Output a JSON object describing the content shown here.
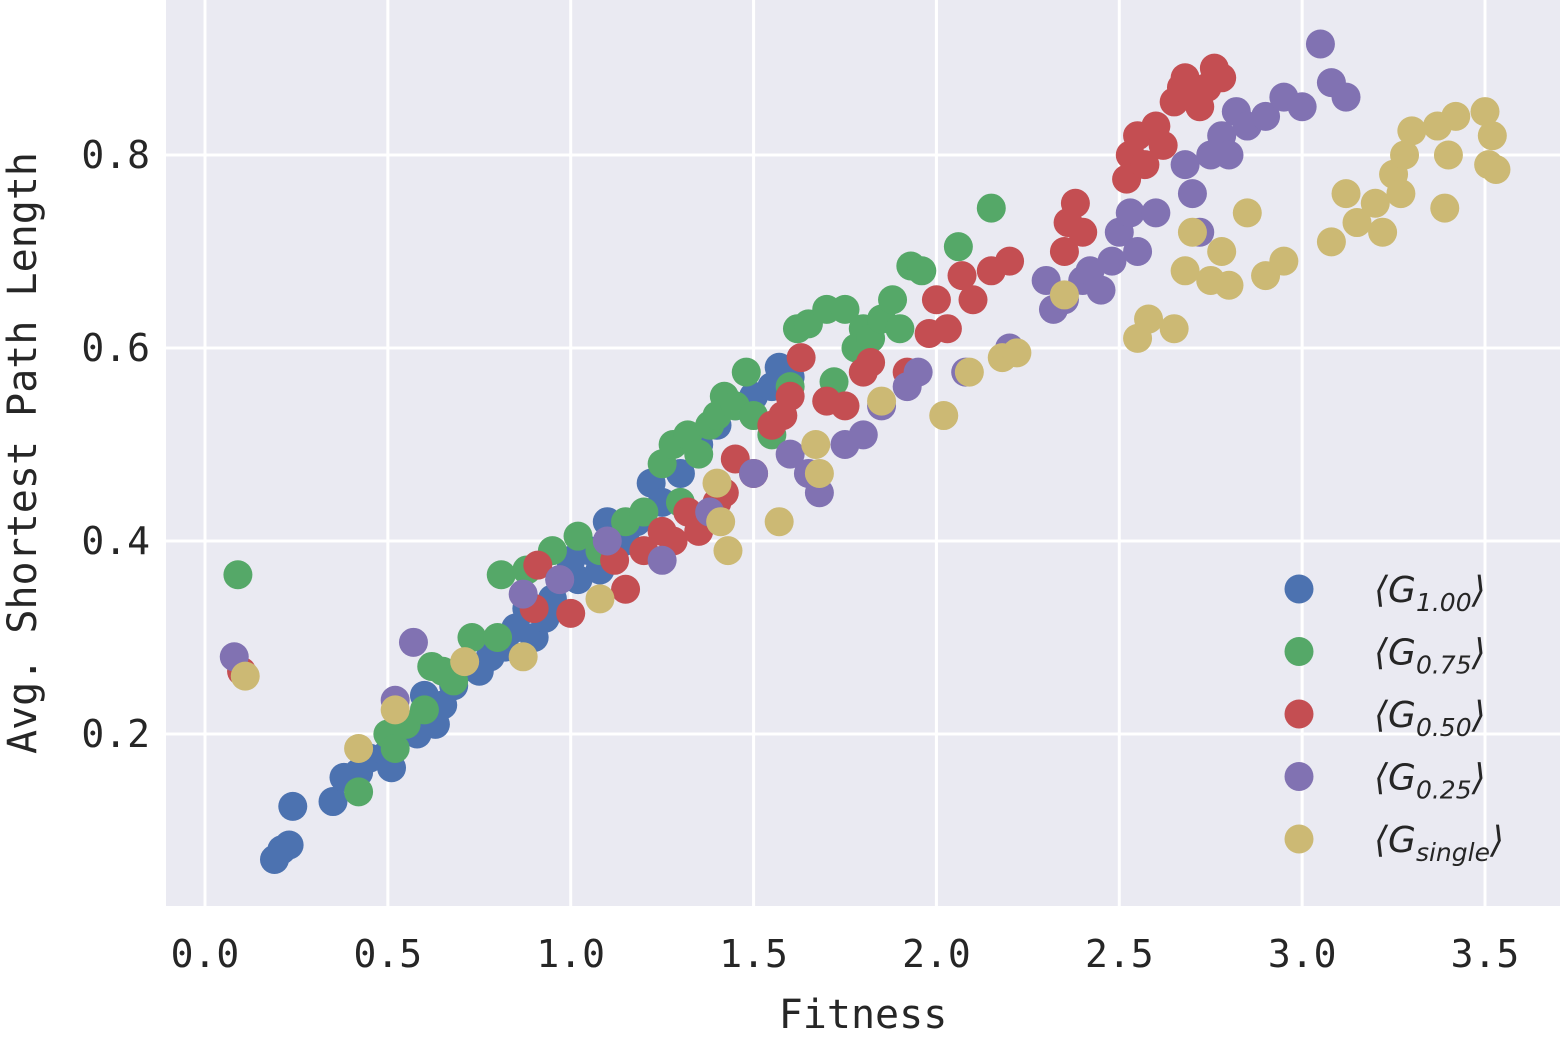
{
  "chart_data": {
    "type": "scatter",
    "xlabel": "Fitness",
    "ylabel": "Avg. Shortest Path Length",
    "xlim": [
      -0.1,
      3.6
    ],
    "ylim": [
      0.02,
      0.96
    ],
    "xticks": [
      "0.0",
      "0.5",
      "1.0",
      "1.5",
      "2.0",
      "2.5",
      "3.0",
      "3.5"
    ],
    "yticks": [
      "0.2",
      "0.4",
      "0.6",
      "0.8"
    ],
    "grid": true,
    "legend_position": "lower-right",
    "background_color": "#EAEAF2",
    "series": [
      {
        "legend": {
          "prefix": "⟨G",
          "sub": "1.00",
          "suffix": "⟩"
        },
        "color": "#4C72B0",
        "points": [
          [
            0.19,
            0.07
          ],
          [
            0.21,
            0.08
          ],
          [
            0.23,
            0.085
          ],
          [
            0.24,
            0.125
          ],
          [
            0.35,
            0.13
          ],
          [
            0.38,
            0.155
          ],
          [
            0.42,
            0.16
          ],
          [
            0.45,
            0.175
          ],
          [
            0.5,
            0.18
          ],
          [
            0.51,
            0.165
          ],
          [
            0.55,
            0.21
          ],
          [
            0.58,
            0.2
          ],
          [
            0.6,
            0.24
          ],
          [
            0.63,
            0.21
          ],
          [
            0.65,
            0.23
          ],
          [
            0.68,
            0.25
          ],
          [
            0.72,
            0.27
          ],
          [
            0.75,
            0.265
          ],
          [
            0.78,
            0.28
          ],
          [
            0.82,
            0.29
          ],
          [
            0.85,
            0.31
          ],
          [
            0.88,
            0.33
          ],
          [
            0.9,
            0.3
          ],
          [
            0.93,
            0.32
          ],
          [
            0.95,
            0.34
          ],
          [
            0.97,
            0.36
          ],
          [
            1.0,
            0.38
          ],
          [
            1.02,
            0.36
          ],
          [
            1.05,
            0.39
          ],
          [
            1.08,
            0.37
          ],
          [
            1.1,
            0.42
          ],
          [
            1.12,
            0.39
          ],
          [
            1.15,
            0.4
          ],
          [
            1.18,
            0.42
          ],
          [
            1.22,
            0.46
          ],
          [
            1.25,
            0.44
          ],
          [
            1.3,
            0.47
          ],
          [
            1.35,
            0.5
          ],
          [
            1.4,
            0.52
          ],
          [
            1.45,
            0.54
          ],
          [
            1.5,
            0.55
          ],
          [
            1.55,
            0.56
          ],
          [
            1.57,
            0.58
          ],
          [
            1.6,
            0.57
          ]
        ]
      },
      {
        "legend": {
          "prefix": "⟨G",
          "sub": "0.75",
          "suffix": "⟩"
        },
        "color": "#55A868",
        "points": [
          [
            0.09,
            0.365
          ],
          [
            0.42,
            0.14
          ],
          [
            0.5,
            0.2
          ],
          [
            0.52,
            0.185
          ],
          [
            0.55,
            0.21
          ],
          [
            0.6,
            0.225
          ],
          [
            0.62,
            0.27
          ],
          [
            0.65,
            0.265
          ],
          [
            0.68,
            0.255
          ],
          [
            0.73,
            0.3
          ],
          [
            0.8,
            0.3
          ],
          [
            0.81,
            0.365
          ],
          [
            0.88,
            0.37
          ],
          [
            0.95,
            0.39
          ],
          [
            1.02,
            0.405
          ],
          [
            1.08,
            0.39
          ],
          [
            1.15,
            0.42
          ],
          [
            1.2,
            0.43
          ],
          [
            1.25,
            0.48
          ],
          [
            1.28,
            0.5
          ],
          [
            1.3,
            0.44
          ],
          [
            1.32,
            0.51
          ],
          [
            1.35,
            0.49
          ],
          [
            1.38,
            0.52
          ],
          [
            1.4,
            0.53
          ],
          [
            1.42,
            0.55
          ],
          [
            1.45,
            0.54
          ],
          [
            1.48,
            0.575
          ],
          [
            1.5,
            0.53
          ],
          [
            1.55,
            0.51
          ],
          [
            1.6,
            0.56
          ],
          [
            1.62,
            0.62
          ],
          [
            1.65,
            0.625
          ],
          [
            1.7,
            0.64
          ],
          [
            1.72,
            0.565
          ],
          [
            1.75,
            0.64
          ],
          [
            1.78,
            0.6
          ],
          [
            1.8,
            0.62
          ],
          [
            1.82,
            0.61
          ],
          [
            1.85,
            0.63
          ],
          [
            1.88,
            0.65
          ],
          [
            1.9,
            0.62
          ],
          [
            1.93,
            0.685
          ],
          [
            1.96,
            0.68
          ],
          [
            2.06,
            0.705
          ],
          [
            2.15,
            0.745
          ]
        ]
      },
      {
        "legend": {
          "prefix": "⟨G",
          "sub": "0.50",
          "suffix": "⟩"
        },
        "color": "#C44E52",
        "points": [
          [
            0.1,
            0.265
          ],
          [
            0.91,
            0.375
          ],
          [
            0.9,
            0.33
          ],
          [
            1.0,
            0.325
          ],
          [
            1.12,
            0.38
          ],
          [
            1.15,
            0.35
          ],
          [
            1.2,
            0.39
          ],
          [
            1.25,
            0.41
          ],
          [
            1.28,
            0.4
          ],
          [
            1.32,
            0.43
          ],
          [
            1.35,
            0.41
          ],
          [
            1.4,
            0.44
          ],
          [
            1.42,
            0.45
          ],
          [
            1.45,
            0.485
          ],
          [
            1.5,
            0.47
          ],
          [
            1.55,
            0.52
          ],
          [
            1.58,
            0.53
          ],
          [
            1.6,
            0.55
          ],
          [
            1.63,
            0.59
          ],
          [
            1.7,
            0.545
          ],
          [
            1.75,
            0.54
          ],
          [
            1.8,
            0.575
          ],
          [
            1.82,
            0.585
          ],
          [
            1.92,
            0.575
          ],
          [
            1.98,
            0.615
          ],
          [
            2.0,
            0.65
          ],
          [
            2.03,
            0.62
          ],
          [
            2.07,
            0.675
          ],
          [
            2.1,
            0.65
          ],
          [
            2.15,
            0.68
          ],
          [
            2.2,
            0.69
          ],
          [
            2.35,
            0.7
          ],
          [
            2.36,
            0.73
          ],
          [
            2.38,
            0.75
          ],
          [
            2.4,
            0.72
          ],
          [
            2.52,
            0.775
          ],
          [
            2.53,
            0.8
          ],
          [
            2.55,
            0.82
          ],
          [
            2.57,
            0.79
          ],
          [
            2.6,
            0.83
          ],
          [
            2.62,
            0.81
          ],
          [
            2.65,
            0.855
          ],
          [
            2.67,
            0.87
          ],
          [
            2.68,
            0.88
          ],
          [
            2.7,
            0.86
          ],
          [
            2.72,
            0.85
          ],
          [
            2.74,
            0.87
          ],
          [
            2.76,
            0.89
          ],
          [
            2.78,
            0.88
          ]
        ]
      },
      {
        "legend": {
          "prefix": "⟨G",
          "sub": "0.25",
          "suffix": "⟩"
        },
        "color": "#8172B2",
        "points": [
          [
            0.08,
            0.28
          ],
          [
            0.52,
            0.235
          ],
          [
            0.57,
            0.295
          ],
          [
            0.87,
            0.345
          ],
          [
            0.97,
            0.36
          ],
          [
            1.1,
            0.4
          ],
          [
            1.25,
            0.38
          ],
          [
            1.38,
            0.43
          ],
          [
            1.5,
            0.47
          ],
          [
            1.6,
            0.49
          ],
          [
            1.65,
            0.47
          ],
          [
            1.68,
            0.45
          ],
          [
            1.75,
            0.5
          ],
          [
            1.8,
            0.51
          ],
          [
            1.85,
            0.54
          ],
          [
            1.92,
            0.56
          ],
          [
            1.95,
            0.575
          ],
          [
            2.08,
            0.575
          ],
          [
            2.2,
            0.6
          ],
          [
            2.3,
            0.67
          ],
          [
            2.32,
            0.64
          ],
          [
            2.35,
            0.65
          ],
          [
            2.4,
            0.67
          ],
          [
            2.42,
            0.68
          ],
          [
            2.45,
            0.66
          ],
          [
            2.48,
            0.69
          ],
          [
            2.5,
            0.72
          ],
          [
            2.53,
            0.74
          ],
          [
            2.55,
            0.7
          ],
          [
            2.6,
            0.74
          ],
          [
            2.68,
            0.79
          ],
          [
            2.7,
            0.76
          ],
          [
            2.72,
            0.72
          ],
          [
            2.75,
            0.8
          ],
          [
            2.78,
            0.82
          ],
          [
            2.8,
            0.8
          ],
          [
            2.82,
            0.845
          ],
          [
            2.85,
            0.83
          ],
          [
            2.9,
            0.84
          ],
          [
            2.95,
            0.86
          ],
          [
            3.0,
            0.85
          ],
          [
            3.05,
            0.915
          ],
          [
            3.08,
            0.875
          ],
          [
            3.12,
            0.86
          ]
        ]
      },
      {
        "legend": {
          "prefix": "⟨G",
          "sub": "single",
          "suffix": "⟩"
        },
        "color": "#CCB974",
        "points": [
          [
            0.11,
            0.26
          ],
          [
            0.42,
            0.185
          ],
          [
            0.52,
            0.225
          ],
          [
            0.71,
            0.275
          ],
          [
            0.87,
            0.28
          ],
          [
            1.08,
            0.34
          ],
          [
            1.4,
            0.46
          ],
          [
            1.41,
            0.42
          ],
          [
            1.43,
            0.39
          ],
          [
            1.57,
            0.42
          ],
          [
            1.67,
            0.5
          ],
          [
            1.68,
            0.47
          ],
          [
            1.85,
            0.545
          ],
          [
            2.02,
            0.53
          ],
          [
            2.09,
            0.575
          ],
          [
            2.18,
            0.59
          ],
          [
            2.22,
            0.595
          ],
          [
            2.35,
            0.655
          ],
          [
            2.55,
            0.61
          ],
          [
            2.58,
            0.63
          ],
          [
            2.65,
            0.62
          ],
          [
            2.68,
            0.68
          ],
          [
            2.7,
            0.72
          ],
          [
            2.75,
            0.67
          ],
          [
            2.78,
            0.7
          ],
          [
            2.8,
            0.665
          ],
          [
            2.85,
            0.74
          ],
          [
            2.9,
            0.675
          ],
          [
            2.95,
            0.69
          ],
          [
            3.08,
            0.71
          ],
          [
            3.12,
            0.76
          ],
          [
            3.15,
            0.73
          ],
          [
            3.2,
            0.75
          ],
          [
            3.22,
            0.72
          ],
          [
            3.25,
            0.78
          ],
          [
            3.27,
            0.76
          ],
          [
            3.28,
            0.8
          ],
          [
            3.3,
            0.825
          ],
          [
            3.37,
            0.83
          ],
          [
            3.39,
            0.745
          ],
          [
            3.4,
            0.8
          ],
          [
            3.42,
            0.84
          ],
          [
            3.5,
            0.845
          ],
          [
            3.51,
            0.79
          ],
          [
            3.52,
            0.82
          ],
          [
            3.53,
            0.785
          ]
        ]
      }
    ]
  }
}
